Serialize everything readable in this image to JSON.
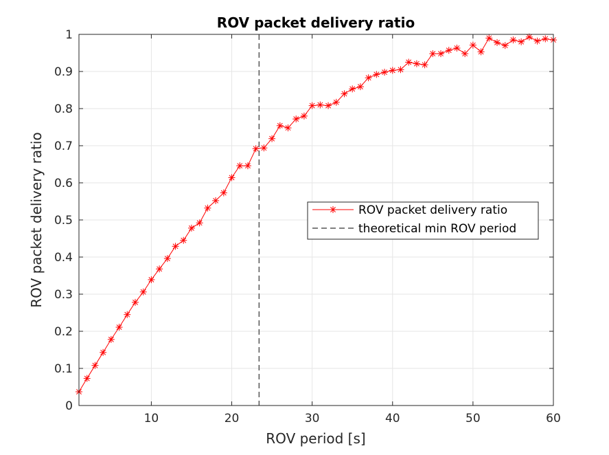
{
  "chart_data": {
    "type": "line",
    "title": "ROV packet delivery ratio",
    "xlabel": "ROV period [s]",
    "ylabel": "ROV packet delivery ratio",
    "xlim": [
      1,
      60
    ],
    "ylim": [
      0,
      1
    ],
    "xticks": [
      10,
      20,
      30,
      40,
      50,
      60
    ],
    "yticks": [
      0,
      0.1,
      0.2,
      0.3,
      0.4,
      0.5,
      0.6,
      0.7,
      0.8,
      0.9,
      1
    ],
    "ytick_labels": [
      "0",
      "0.1",
      "0.2",
      "0.3",
      "0.4",
      "0.5",
      "0.6",
      "0.7",
      "0.8",
      "0.9",
      "1"
    ],
    "grid": true,
    "legend_position": "center-right",
    "series": [
      {
        "name": "ROV packet delivery ratio",
        "color": "#ff0000",
        "line_style": "solid",
        "marker": "asterisk",
        "x": [
          1,
          2,
          3,
          4,
          5,
          6,
          7,
          8,
          9,
          10,
          11,
          12,
          13,
          14,
          15,
          16,
          17,
          18,
          19,
          20,
          21,
          22,
          23,
          24,
          25,
          26,
          27,
          28,
          29,
          30,
          31,
          32,
          33,
          34,
          35,
          36,
          37,
          38,
          39,
          40,
          41,
          42,
          43,
          44,
          45,
          46,
          47,
          48,
          49,
          50,
          51,
          52,
          53,
          54,
          55,
          56,
          57,
          58,
          59,
          60
        ],
        "values": [
          0.037,
          0.073,
          0.108,
          0.143,
          0.178,
          0.211,
          0.245,
          0.278,
          0.306,
          0.339,
          0.368,
          0.396,
          0.429,
          0.445,
          0.478,
          0.492,
          0.532,
          0.552,
          0.573,
          0.614,
          0.646,
          0.646,
          0.692,
          0.694,
          0.719,
          0.754,
          0.748,
          0.772,
          0.78,
          0.808,
          0.81,
          0.808,
          0.817,
          0.84,
          0.853,
          0.859,
          0.883,
          0.892,
          0.898,
          0.903,
          0.905,
          0.925,
          0.921,
          0.918,
          0.948,
          0.948,
          0.957,
          0.963,
          0.948,
          0.971,
          0.953,
          0.99,
          0.978,
          0.97,
          0.985,
          0.98,
          0.993,
          0.982,
          0.988,
          0.985
        ]
      },
      {
        "name": "theoretical min ROV period",
        "color": "#555555",
        "line_style": "dashed",
        "x_constant": 23.4
      }
    ]
  }
}
